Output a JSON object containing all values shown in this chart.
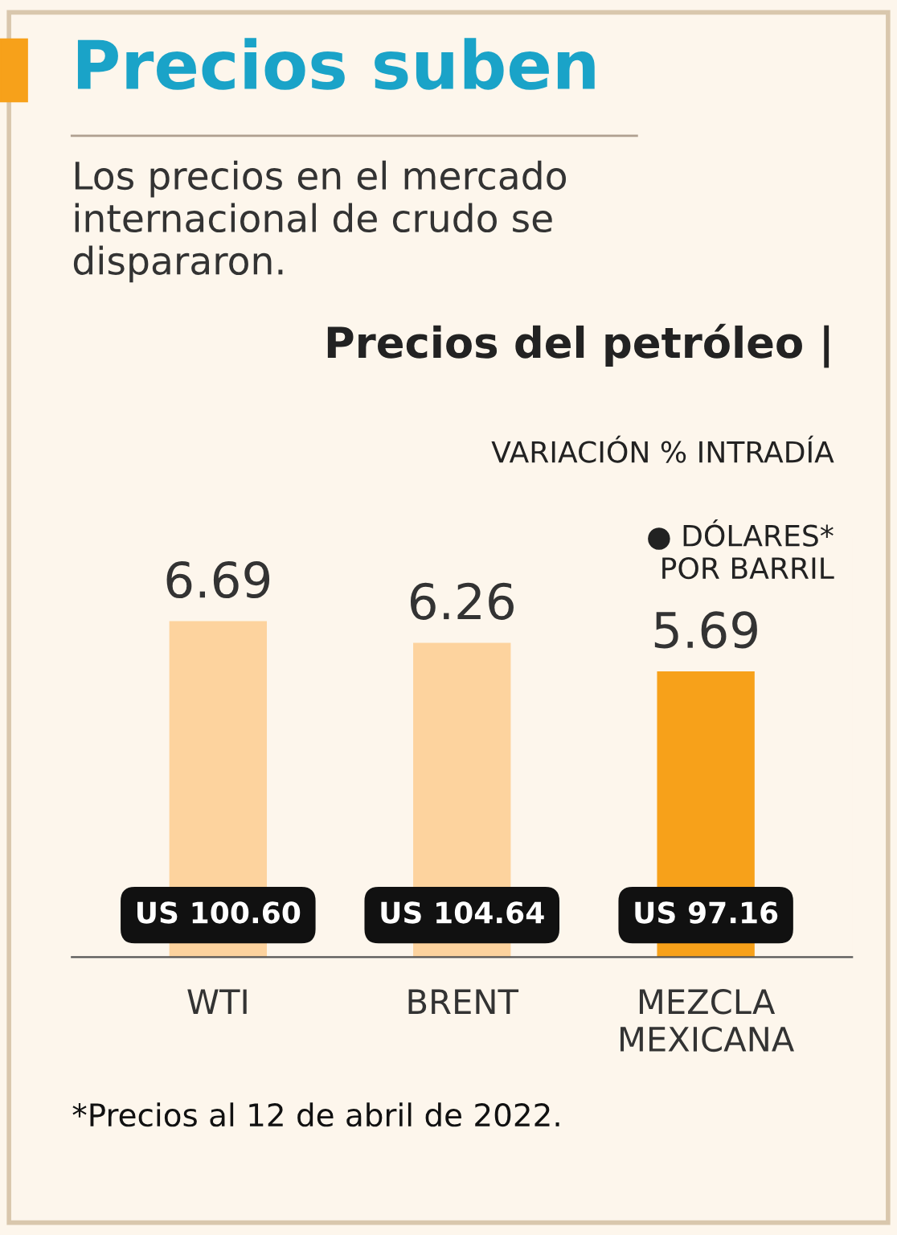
{
  "chart_data": {
    "type": "bar",
    "title": "Precios suben",
    "subtitle": "Los precios en el mercado internacional de crudo se dispararon.",
    "categories": [
      "WTI",
      "BRENT",
      "MEZCLA\nMEXICANA"
    ],
    "values": [
      6.69,
      6.26,
      5.69
    ],
    "colors": [
      "#fdd39e",
      "#fdd39e",
      "#f7a11a"
    ],
    "data_labels": true,
    "annotations": [
      "Precios del petróleo |",
      "VARIACIÓN % INTRADÍA",
      "● DÓLARES*\nPOR BARRIL",
      "US 100.60",
      "US 104.64",
      "US 97.16",
      "*Precios al 12 de abril de 2022."
    ]
  }
}
